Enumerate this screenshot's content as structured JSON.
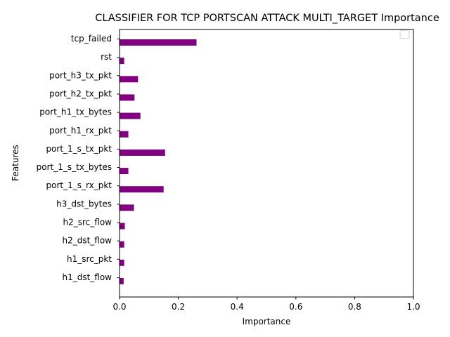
{
  "chart_data": {
    "type": "bar",
    "orientation": "horizontal",
    "title": "CLASSIFIER FOR TCP PORTSCAN ATTACK MULTI_TARGET Importance",
    "xlabel": "Importance",
    "ylabel": "Features",
    "xlim": [
      0,
      1
    ],
    "x_ticks": [
      "0.0",
      "0.2",
      "0.4",
      "0.6",
      "0.8",
      "1.0"
    ],
    "bar_color": "#800080",
    "grid": false,
    "legend": {
      "placement": "top-right",
      "entries": []
    },
    "categories": [
      "tcp_failed",
      "rst",
      "port_h3_tx_pkt",
      "port_h2_tx_pkt",
      "port_h1_tx_bytes",
      "port_h1_rx_pkt",
      "port_1_s_tx_pkt",
      "port_1_s_tx_bytes",
      "port_1_s_rx_pkt",
      "h3_dst_bytes",
      "h2_src_flow",
      "h2_dst_flow",
      "h1_src_pkt",
      "h1_dst_flow"
    ],
    "values": [
      0.262,
      0.016,
      0.063,
      0.051,
      0.071,
      0.03,
      0.155,
      0.03,
      0.15,
      0.049,
      0.018,
      0.016,
      0.016,
      0.014
    ]
  }
}
